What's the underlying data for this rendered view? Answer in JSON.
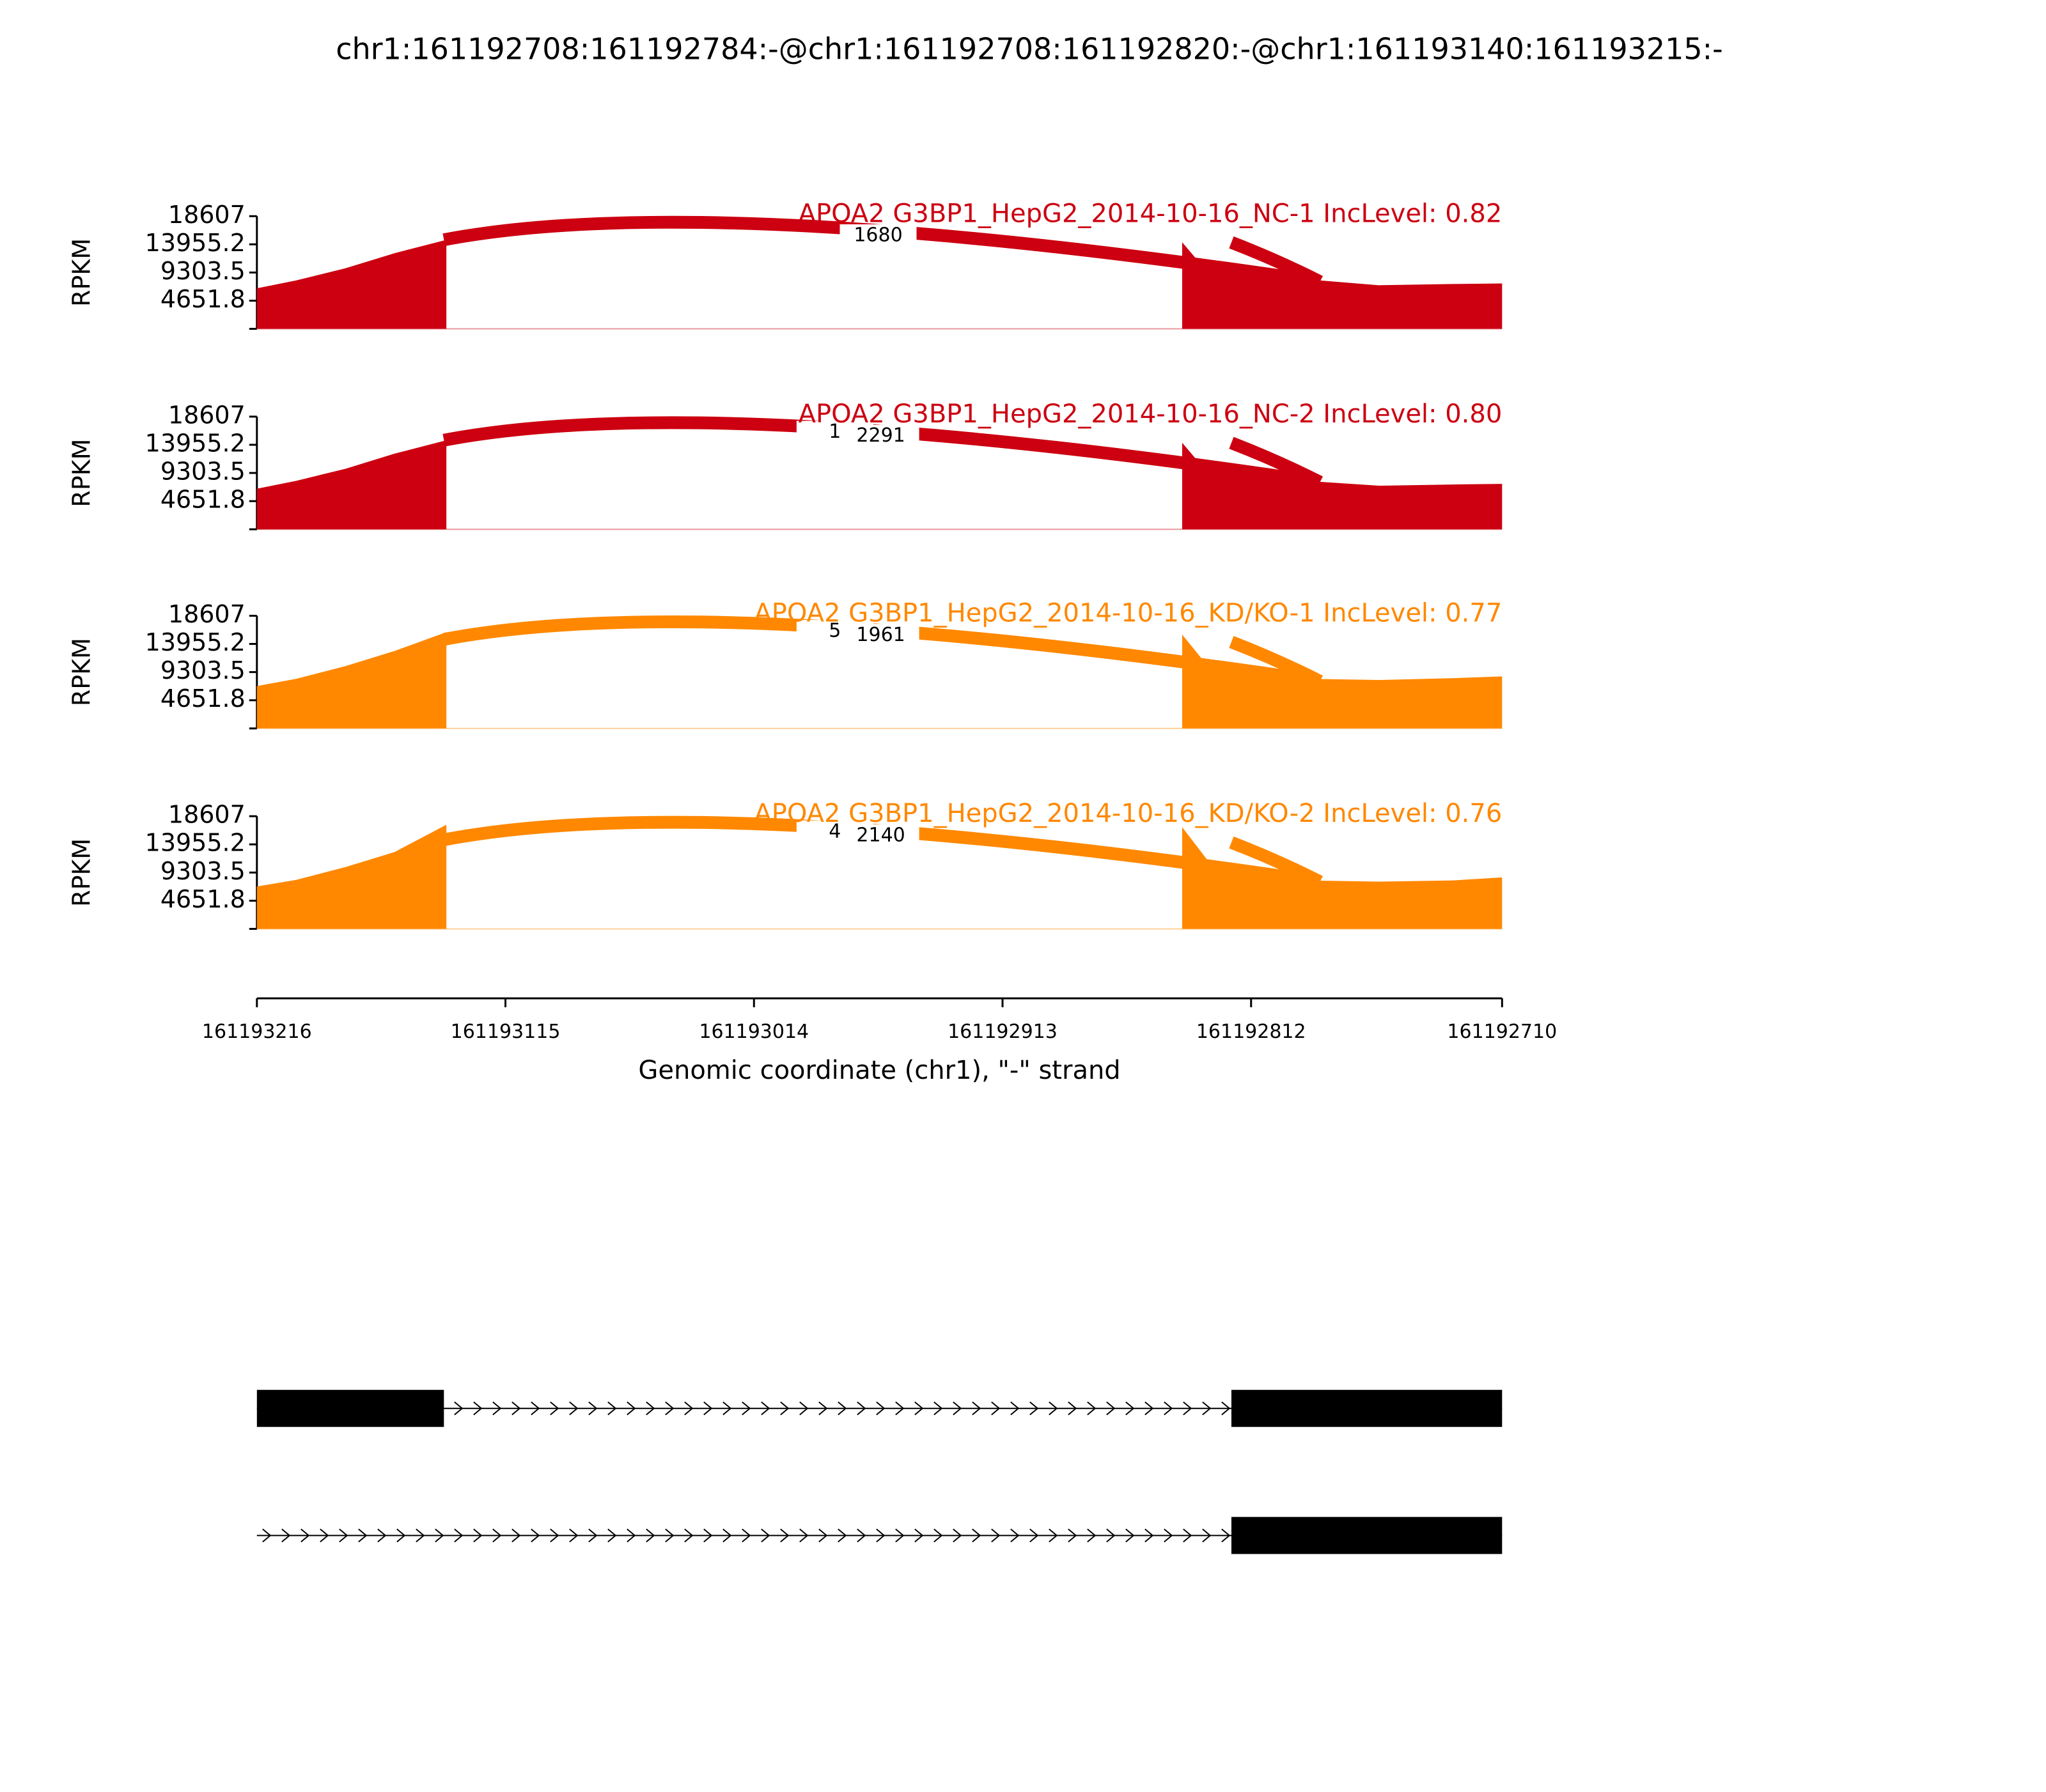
{
  "chart_data": {
    "type": "sashimi",
    "title": "chr1:161192708:161192784:-@chr1:161192708:161192820:-@chr1:161193140:161193215:-",
    "xlabel": "Genomic coordinate (chr1), \"-\" strand",
    "ylabel": "RPKM",
    "xlim": [
      161193216,
      161192710
    ],
    "xticks": [
      161193216,
      161193115,
      161193014,
      161192913,
      161192812,
      161192710
    ],
    "ylim": [
      0,
      18607
    ],
    "yticks": [
      4651.8,
      9303.5,
      13955.2,
      18607
    ],
    "x": [
      161193216,
      161193200,
      161193180,
      161193160,
      161193139,
      161193000,
      161192840,
      161192830,
      161192815,
      161192790,
      161192760,
      161192730,
      161192710
    ],
    "junctions": [
      [
        161193140,
        161192784
      ],
      [
        161192820,
        161192784
      ]
    ],
    "series": [
      {
        "name": "APOA2 G3BP1_HepG2_2014-10-16_NC-1 IncLevel: 0.82",
        "color": "#cc0011",
        "values": [
          6700,
          8000,
          10000,
          12500,
          14700,
          null,
          14300,
          9500,
          9000,
          8200,
          7200,
          7400,
          7500
        ],
        "junction_labels": [
          "1680"
        ]
      },
      {
        "name": "APOA2 G3BP1_HepG2_2014-10-16_NC-2 IncLevel: 0.80",
        "color": "#cc0011",
        "values": [
          6700,
          8000,
          10000,
          12500,
          14700,
          null,
          14300,
          9500,
          9000,
          8000,
          7200,
          7400,
          7500
        ],
        "junction_labels": [
          "1",
          "2291"
        ]
      },
      {
        "name": "APOA2 G3BP1_HepG2_2014-10-16_KD/KO-1 IncLevel: 0.77",
        "color": "#ff8800",
        "values": [
          7000,
          8200,
          10300,
          12800,
          15900,
          null,
          15500,
          10500,
          9800,
          8200,
          8000,
          8300,
          8600
        ],
        "junction_labels": [
          "5",
          "1961"
        ]
      },
      {
        "name": "APOA2 G3BP1_HepG2_2014-10-16_KD/KO-2 IncLevel: 0.76",
        "color": "#ff8800",
        "values": [
          7000,
          8100,
          10200,
          12700,
          17200,
          null,
          16800,
          11500,
          10000,
          8000,
          7800,
          8000,
          8500
        ],
        "junction_labels": [
          "4",
          "2140"
        ]
      }
    ],
    "transcripts": [
      {
        "exons": [
          [
            161193216,
            161193140
          ],
          [
            161192820,
            161192710
          ]
        ]
      },
      {
        "exons": [
          [
            161192820,
            161192710
          ]
        ]
      }
    ]
  }
}
